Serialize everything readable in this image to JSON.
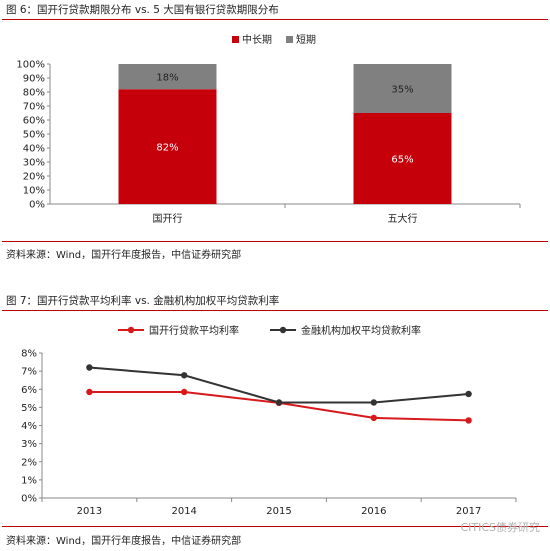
{
  "figure1": {
    "title": "图 6：国开行贷款期限分布  vs. 5 大国有银行贷款期限分布",
    "source": "资料来源：Wind，国开行年度报告，中信证券研究部",
    "colors": {
      "medium_long": "#c5000b",
      "short": "#808080"
    }
  },
  "figure2": {
    "title": "图 7：国开行贷款平均利率  vs.  金融机构加权平均贷款利率",
    "source": "资料来源：Wind，国开行年度报告，中信证券研究部",
    "colors": {
      "cdb": "#d7191c",
      "market": "#333333"
    }
  },
  "watermark": "CITICS债券研究",
  "chart_data": [
    {
      "type": "bar",
      "stacked": true,
      "categories": [
        "国开行",
        "五大行"
      ],
      "series": [
        {
          "name": "中长期",
          "values": [
            82,
            65
          ],
          "labels": [
            "82%",
            "65%"
          ]
        },
        {
          "name": "短期",
          "values": [
            18,
            35
          ],
          "labels": [
            "18%",
            "35%"
          ]
        }
      ],
      "ylim": [
        0,
        100
      ],
      "yticks": [
        "0%",
        "10%",
        "20%",
        "30%",
        "40%",
        "50%",
        "60%",
        "70%",
        "80%",
        "90%",
        "100%"
      ],
      "legend": "top-center"
    },
    {
      "type": "line",
      "x": [
        "2013",
        "2014",
        "2015",
        "2016",
        "2017"
      ],
      "series": [
        {
          "name": "国开行贷款平均利率",
          "values": [
            5.85,
            5.85,
            5.25,
            4.42,
            4.28
          ]
        },
        {
          "name": "金融机构加权平均贷款利率",
          "values": [
            7.2,
            6.77,
            5.27,
            5.27,
            5.74
          ]
        }
      ],
      "ylim": [
        0,
        8
      ],
      "yticks": [
        "0%",
        "1%",
        "2%",
        "3%",
        "4%",
        "5%",
        "6%",
        "7%",
        "8%"
      ],
      "legend": "top-left"
    }
  ]
}
